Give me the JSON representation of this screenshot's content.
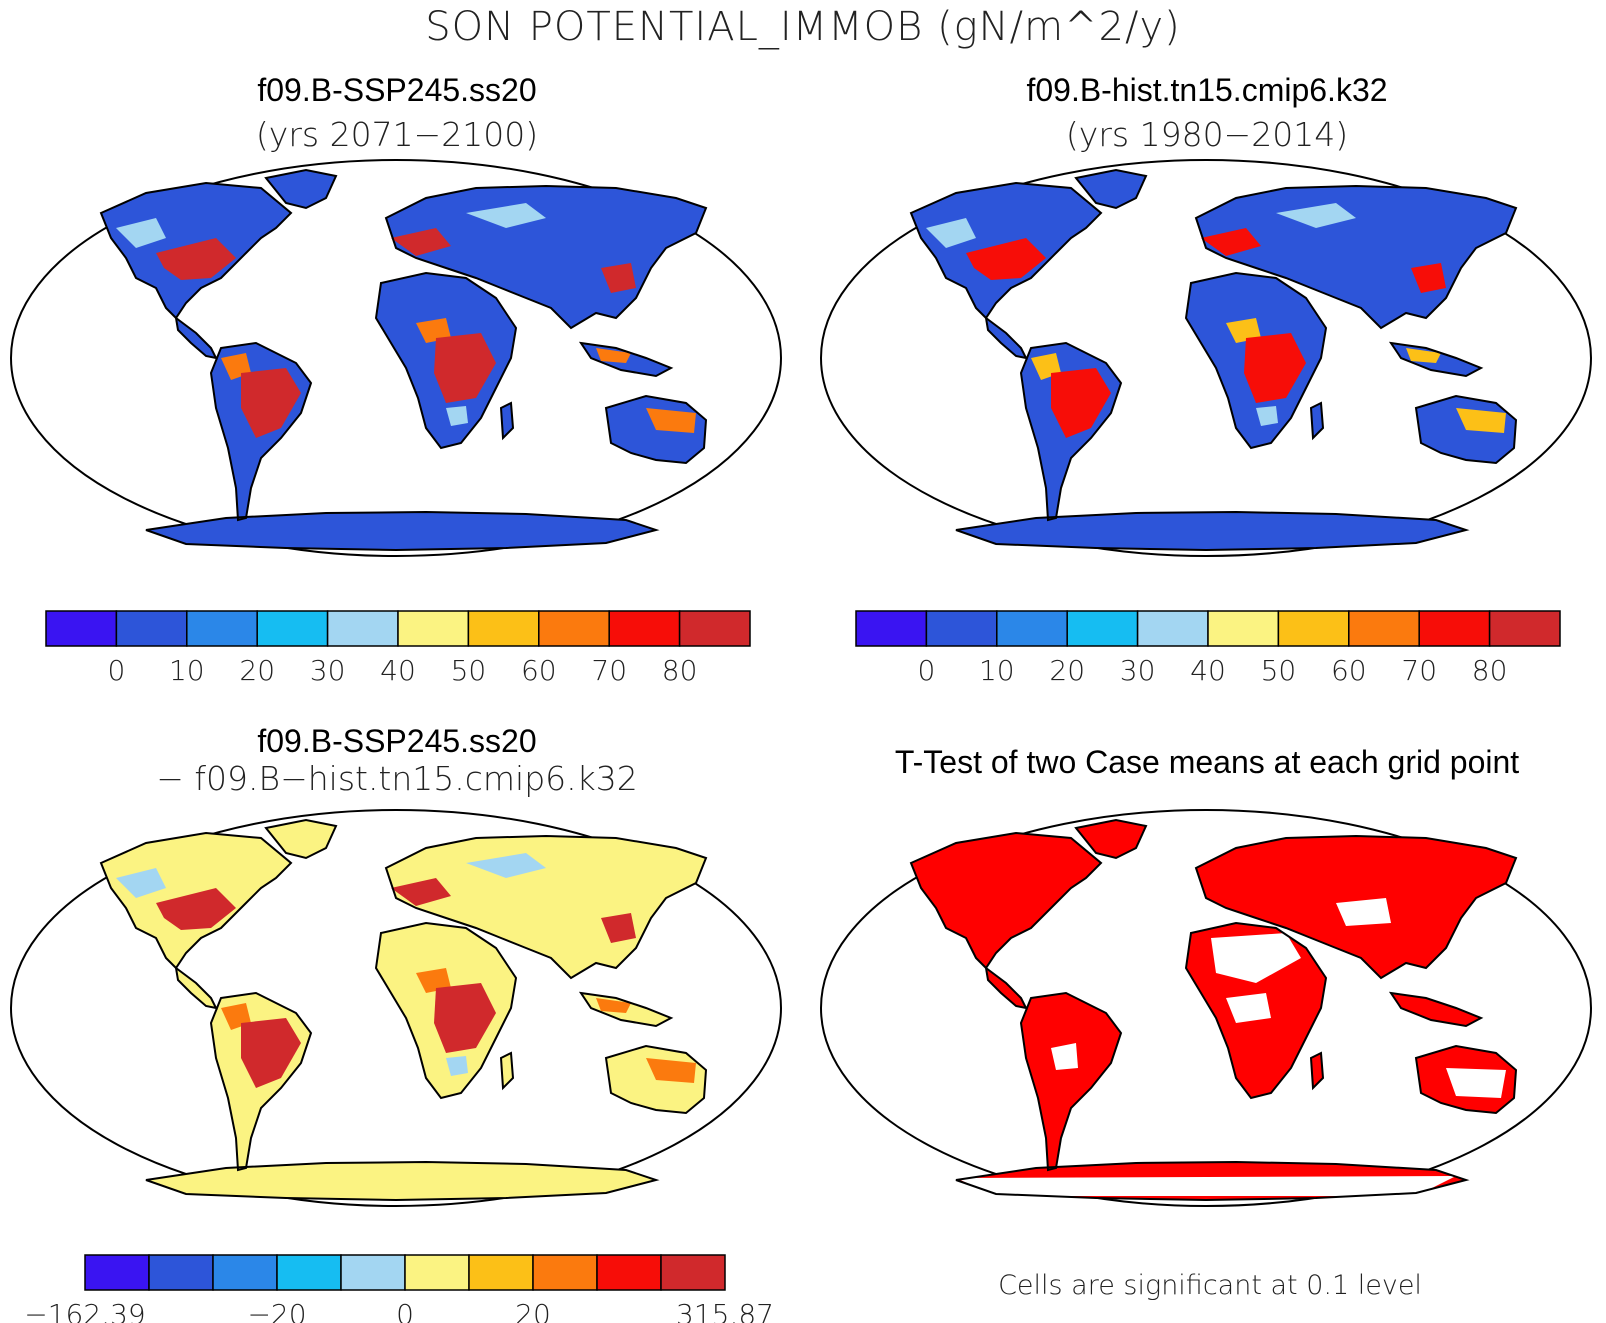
{
  "main_title": "SON POTENTIAL_IMMOB (gN/m^2/y)",
  "colors": {
    "scale10": [
      "#3a14f2",
      "#2d55d9",
      "#2b87e8",
      "#16bdf2",
      "#a3d6f2",
      "#fbf382",
      "#fcc017",
      "#fb7a0e",
      "#f70d08",
      "#d0292c"
    ],
    "sig": "#ff0000",
    "land_bg": "#ffffff"
  },
  "panels": [
    {
      "id": "case1",
      "title": "f09.B-SSP245.ss20",
      "subtitle": "(yrs 2071−2100)",
      "palette": "scale10",
      "land_fill": "#2d55d9",
      "hot_fill": "#d0292c",
      "warm_fill": "#fb7a0e",
      "cold_fill": "#a3d6f2",
      "colorbar_ticks": [
        "0",
        "10",
        "20",
        "30",
        "40",
        "50",
        "60",
        "70",
        "80"
      ]
    },
    {
      "id": "case2",
      "title": "f09.B-hist.tn15.cmip6.k32",
      "subtitle": "(yrs 1980−2014)",
      "palette": "scale10",
      "land_fill": "#2d55d9",
      "hot_fill": "#f70d08",
      "warm_fill": "#fcc017",
      "cold_fill": "#a3d6f2",
      "colorbar_ticks": [
        "0",
        "10",
        "20",
        "30",
        "40",
        "50",
        "60",
        "70",
        "80"
      ]
    },
    {
      "id": "diff",
      "title": "f09.B-SSP245.ss20",
      "subtitle": "− f09.B−hist.tn15.cmip6.k32",
      "palette": "scale10",
      "land_fill": "#fbf382",
      "hot_fill": "#d0292c",
      "warm_fill": "#fb7a0e",
      "cold_fill": "#a3d6f2",
      "colorbar_ticks": [
        "−162.39",
        "−20",
        "0",
        "20",
        "315.87"
      ]
    },
    {
      "id": "ttest",
      "title": "T-Test of two Case means at each grid point",
      "subtitle": "",
      "palette": "sig",
      "land_fill": "#ff0000",
      "hot_fill": "#ff0000",
      "warm_fill": "#ffffff",
      "cold_fill": "#ffffff",
      "note": "Cells are significant at 0.1 level"
    }
  ]
}
